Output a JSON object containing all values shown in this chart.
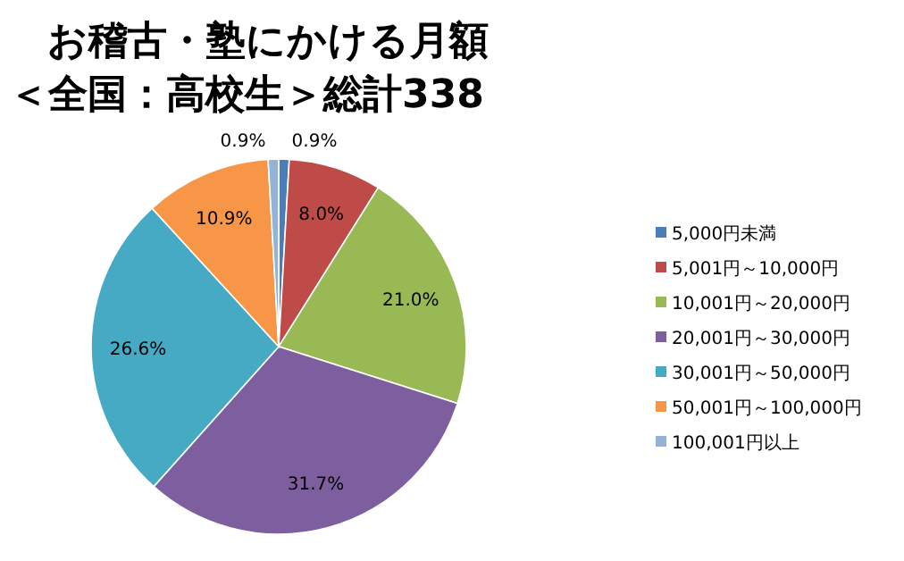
{
  "chart_data": {
    "type": "pie",
    "title": "お稽古・塾にかける月額",
    "subtitle": "＜全国：高校生＞総計338",
    "categories": [
      "5,000円未満",
      "5,001円～10,000円",
      "10,001円～20,000円",
      "20,001円～30,000円",
      "30,001円～50,000円",
      "50,001円～100,000円",
      "100,001円以上"
    ],
    "values": [
      0.9,
      8.0,
      21.0,
      31.7,
      26.6,
      10.9,
      0.9
    ],
    "colors": [
      "#4a7ebb",
      "#be4b48",
      "#98b954",
      "#7d5fa0",
      "#46aac5",
      "#f79646",
      "#95b3d7"
    ],
    "value_labels": [
      "0.9%",
      "8.0%",
      "21.0%",
      "31.7%",
      "26.6%",
      "10.9%",
      "0.9%"
    ],
    "legend": "right"
  }
}
